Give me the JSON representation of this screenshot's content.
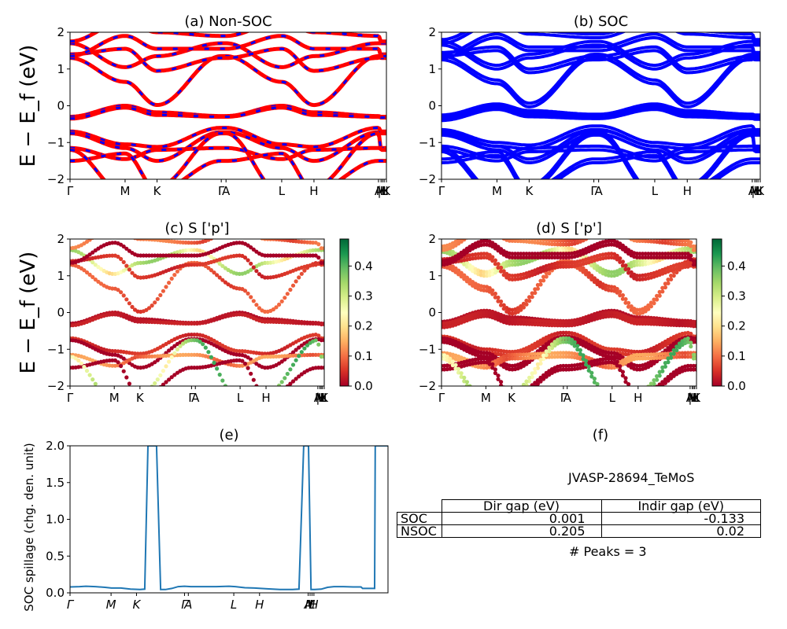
{
  "figure": {
    "material_id": "JVASP-28694_TeMoS",
    "peaks_text": "# Peaks = 3"
  },
  "chart_data": [
    {
      "id": "a",
      "type": "line",
      "title": "(a) Non-SOC",
      "ylabel": "E − E_f (eV)",
      "ylim": [
        -2,
        2
      ],
      "yticks": [
        "−2",
        "−1",
        "0",
        "1",
        "2"
      ],
      "ytick_values": [
        -2,
        -1,
        0,
        1,
        2
      ],
      "xticks": [
        {
          "label": "Γ",
          "k": 0.0
        },
        {
          "label": "M",
          "k": 0.174
        },
        {
          "label": "K",
          "k": 0.275
        },
        {
          "label": "Γ",
          "k": 0.478
        },
        {
          "label": "A",
          "k": 0.493
        },
        {
          "label": "L",
          "k": 0.669
        },
        {
          "label": "H",
          "k": 0.771
        },
        {
          "label": "A",
          "k": 0.975
        },
        {
          "label": "M",
          "k": 0.983
        },
        {
          "label": "|L",
          "k": 0.988
        },
        {
          "label": "H",
          "k": 0.993
        },
        {
          "label": "K",
          "k": 1.0
        }
      ],
      "series": [
        {
          "name": "Non-SOC bands",
          "color": "#ff0000",
          "style": "solid-thick"
        },
        {
          "name": "SOC bands overlay",
          "color": "#0000ff",
          "style": "dashed"
        }
      ]
    },
    {
      "id": "b",
      "type": "line",
      "title": "(b) SOC",
      "ylim": [
        -2,
        2
      ],
      "yticks": [
        "−2",
        "−1",
        "0",
        "1",
        "2"
      ],
      "ytick_values": [
        -2,
        -1,
        0,
        1,
        2
      ],
      "series": [
        {
          "name": "SOC bands",
          "color": "#0000ff",
          "style": "solid-thick"
        }
      ]
    },
    {
      "id": "c",
      "type": "scatter",
      "title": "(c)  S ['p']",
      "ylabel": "E − E_f (eV)",
      "ylim": [
        -2,
        2
      ],
      "yticks": [
        "−2",
        "−1",
        "0",
        "1",
        "2"
      ],
      "ytick_values": [
        -2,
        -1,
        0,
        1,
        2
      ],
      "colorbar": {
        "cmap": "RdYlGn",
        "range": [
          0.0,
          0.49
        ],
        "ticks": [
          "0.0",
          "0.1",
          "0.2",
          "0.3",
          "0.4"
        ],
        "tick_values": [
          0,
          0.1,
          0.2,
          0.3,
          0.4
        ]
      }
    },
    {
      "id": "d",
      "type": "scatter",
      "title": "(d) S ['p']",
      "ylim": [
        -2,
        2
      ],
      "yticks": [
        "−2",
        "−1",
        "0",
        "1",
        "2"
      ],
      "ytick_values": [
        -2,
        -1,
        0,
        1,
        2
      ],
      "colorbar": {
        "cmap": "RdYlGn",
        "range": [
          0.0,
          0.49
        ],
        "ticks": [
          "0.0",
          "0.1",
          "0.2",
          "0.3",
          "0.4"
        ],
        "tick_values": [
          0,
          0.1,
          0.2,
          0.3,
          0.4
        ]
      }
    },
    {
      "id": "e",
      "type": "line",
      "title": "(e)",
      "ylabel": "SOC spillage (chg. den. unit)",
      "ylim": [
        0.0,
        2.0
      ],
      "yticks": [
        "0.0",
        "0.5",
        "1.0",
        "1.5",
        "2.0"
      ],
      "ytick_values": [
        0,
        0.5,
        1.0,
        1.5,
        2.0
      ],
      "xticks": [
        {
          "label": "Γ",
          "k": 0.0
        },
        {
          "label": "M",
          "k": 0.129
        },
        {
          "label": "K",
          "k": 0.209
        },
        {
          "label": "Γ",
          "k": 0.36
        },
        {
          "label": "A",
          "k": 0.372
        },
        {
          "label": "L",
          "k": 0.515
        },
        {
          "label": "H",
          "k": 0.596
        },
        {
          "label": "A",
          "k": 0.749
        },
        {
          "label": "M",
          "k": 0.755
        },
        {
          "label": "L",
          "k": 0.761
        },
        {
          "label": "H",
          "k": 0.767
        }
      ],
      "color": "#1f77b4",
      "x": [
        0,
        0.03,
        0.05,
        0.08,
        0.11,
        0.13,
        0.16,
        0.19,
        0.22,
        0.235,
        0.245,
        0.26,
        0.272,
        0.285,
        0.3,
        0.32,
        0.34,
        0.36,
        0.38,
        0.42,
        0.46,
        0.5,
        0.52,
        0.55,
        0.58,
        0.62,
        0.66,
        0.7,
        0.72,
        0.735,
        0.74,
        0.75,
        0.758,
        0.77,
        0.79,
        0.81,
        0.83,
        0.86,
        0.89,
        0.915,
        0.92,
        0.95,
        0.958,
        0.96,
        1.0
      ],
      "y": [
        0.08,
        0.085,
        0.09,
        0.085,
        0.075,
        0.065,
        0.065,
        0.05,
        0.045,
        0.05,
        2.0,
        2.0,
        2.0,
        0.045,
        0.045,
        0.06,
        0.085,
        0.09,
        0.085,
        0.085,
        0.085,
        0.09,
        0.085,
        0.07,
        0.065,
        0.055,
        0.045,
        0.045,
        0.05,
        2.0,
        2.0,
        2.0,
        0.045,
        0.045,
        0.05,
        0.075,
        0.085,
        0.085,
        0.08,
        0.08,
        0.06,
        0.06,
        0.06,
        2.0,
        2.0
      ]
    },
    {
      "id": "f",
      "type": "table",
      "title": "(f)",
      "columns": [
        "",
        "Dir gap (eV)",
        "Indir gap (eV)"
      ],
      "rows": [
        {
          "label": "SOC",
          "dir_gap": "0.001",
          "indir_gap": "-0.133"
        },
        {
          "label": "NSOC",
          "dir_gap": "0.205",
          "indir_gap": "0.02"
        }
      ]
    }
  ]
}
